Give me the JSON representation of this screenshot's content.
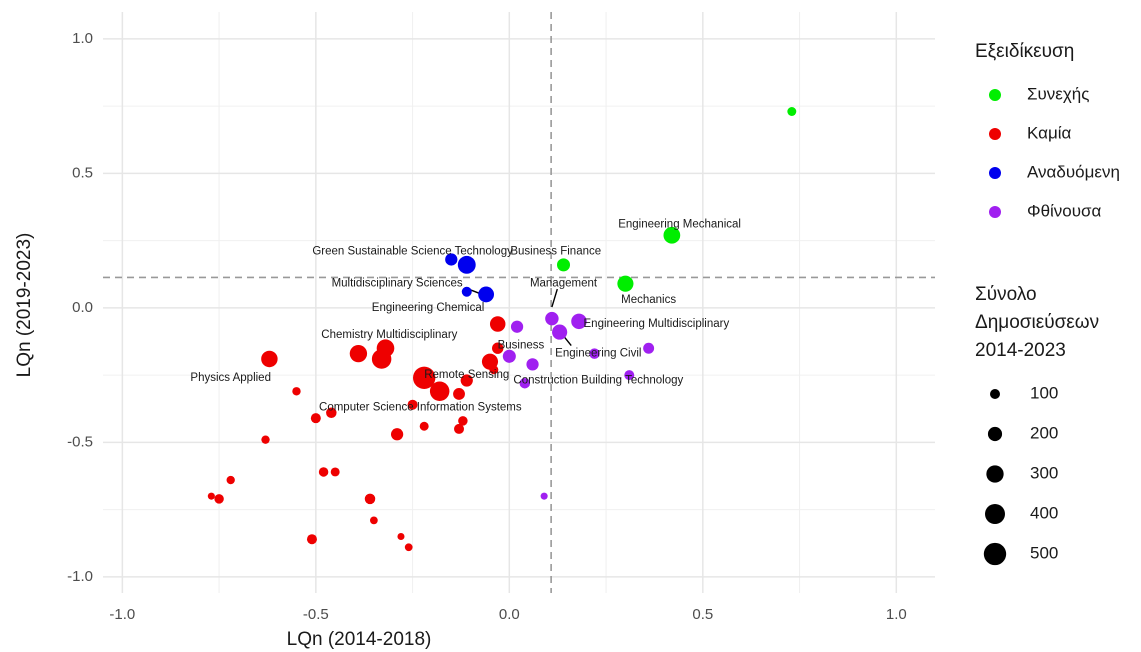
{
  "chart_data": {
    "type": "scatter",
    "title": "",
    "xlabel": "LQn (2014-2018)",
    "ylabel": "LQn (2019-2023)",
    "xlim": [
      -1.05,
      1.1
    ],
    "ylim": [
      -1.06,
      1.1
    ],
    "xticks": [
      -1.0,
      -0.5,
      0.0,
      0.5,
      1.0
    ],
    "xtick_labels": [
      "-1.0",
      "-0.5",
      "0.0",
      "0.5",
      "1.0"
    ],
    "yticks": [
      -1.0,
      -0.5,
      0.0,
      0.5,
      1.0
    ],
    "ytick_labels": [
      "-1.0",
      "-0.5",
      "0.0",
      "0.5",
      "1.0"
    ],
    "grid": true,
    "reference_lines": {
      "x": 0.108,
      "y": 0.113
    },
    "color_legend": {
      "title": "Εξειδίκευση",
      "entries": [
        {
          "name": "Συνεχής",
          "color": "#00ee00"
        },
        {
          "name": "Καμία",
          "color": "#ee0000"
        },
        {
          "name": "Αναδυόμενη",
          "color": "#0000ee"
        },
        {
          "name": "Φθίνουσα",
          "color": "#a020f0"
        }
      ]
    },
    "size_legend": {
      "title_lines": [
        "Σύνολο",
        "Δημοσιεύσεων",
        "2014-2023"
      ],
      "entries": [
        {
          "label": "100",
          "size": 100
        },
        {
          "label": "200",
          "size": 200
        },
        {
          "label": "300",
          "size": 300
        },
        {
          "label": "400",
          "size": 400
        },
        {
          "label": "500",
          "size": 500
        }
      ]
    },
    "series": [
      {
        "name": "Συνεχής",
        "points": [
          {
            "x": 0.73,
            "y": 0.73,
            "size": 80
          },
          {
            "x": 0.42,
            "y": 0.27,
            "size": 280
          },
          {
            "x": 0.3,
            "y": 0.09,
            "size": 260
          },
          {
            "x": 0.14,
            "y": 0.16,
            "size": 170
          }
        ]
      },
      {
        "name": "Καμία",
        "points": [
          {
            "x": -0.62,
            "y": -0.19,
            "size": 270
          },
          {
            "x": -0.55,
            "y": -0.31,
            "size": 70
          },
          {
            "x": -0.5,
            "y": -0.41,
            "size": 100
          },
          {
            "x": -0.46,
            "y": -0.39,
            "size": 110
          },
          {
            "x": -0.63,
            "y": -0.49,
            "size": 70
          },
          {
            "x": -0.72,
            "y": -0.64,
            "size": 70
          },
          {
            "x": -0.77,
            "y": -0.7,
            "size": 50
          },
          {
            "x": -0.75,
            "y": -0.71,
            "size": 90
          },
          {
            "x": -0.48,
            "y": -0.61,
            "size": 90
          },
          {
            "x": -0.45,
            "y": -0.61,
            "size": 80
          },
          {
            "x": -0.36,
            "y": -0.71,
            "size": 110
          },
          {
            "x": -0.35,
            "y": -0.79,
            "size": 60
          },
          {
            "x": -0.51,
            "y": -0.86,
            "size": 100
          },
          {
            "x": -0.28,
            "y": -0.85,
            "size": 50
          },
          {
            "x": -0.26,
            "y": -0.89,
            "size": 60
          },
          {
            "x": -0.39,
            "y": -0.17,
            "size": 300
          },
          {
            "x": -0.32,
            "y": -0.15,
            "size": 310
          },
          {
            "x": -0.33,
            "y": -0.19,
            "size": 380
          },
          {
            "x": -0.22,
            "y": -0.26,
            "size": 500
          },
          {
            "x": -0.18,
            "y": -0.31,
            "size": 380
          },
          {
            "x": -0.13,
            "y": -0.32,
            "size": 140
          },
          {
            "x": -0.11,
            "y": -0.27,
            "size": 150
          },
          {
            "x": -0.04,
            "y": -0.23,
            "size": 80
          },
          {
            "x": -0.05,
            "y": -0.2,
            "size": 260
          },
          {
            "x": -0.03,
            "y": -0.15,
            "size": 130
          },
          {
            "x": -0.03,
            "y": -0.06,
            "size": 240
          },
          {
            "x": -0.25,
            "y": -0.36,
            "size": 100
          },
          {
            "x": -0.29,
            "y": -0.47,
            "size": 150
          },
          {
            "x": -0.22,
            "y": -0.44,
            "size": 80
          },
          {
            "x": -0.13,
            "y": -0.45,
            "size": 100
          },
          {
            "x": -0.12,
            "y": -0.42,
            "size": 90
          }
        ]
      },
      {
        "name": "Αναδυόμενη",
        "points": [
          {
            "x": -0.15,
            "y": 0.18,
            "size": 150
          },
          {
            "x": -0.11,
            "y": 0.16,
            "size": 320
          },
          {
            "x": -0.06,
            "y": 0.05,
            "size": 250
          },
          {
            "x": -0.11,
            "y": 0.06,
            "size": 100
          }
        ]
      },
      {
        "name": "Φθίνουσα",
        "points": [
          {
            "x": 0.09,
            "y": -0.7,
            "size": 50
          },
          {
            "x": 0.02,
            "y": -0.07,
            "size": 150
          },
          {
            "x": 0.0,
            "y": -0.18,
            "size": 170
          },
          {
            "x": 0.06,
            "y": -0.21,
            "size": 150
          },
          {
            "x": 0.04,
            "y": -0.28,
            "size": 110
          },
          {
            "x": 0.11,
            "y": -0.04,
            "size": 180
          },
          {
            "x": 0.13,
            "y": -0.09,
            "size": 230
          },
          {
            "x": 0.18,
            "y": -0.05,
            "size": 240
          },
          {
            "x": 0.22,
            "y": -0.17,
            "size": 110
          },
          {
            "x": 0.31,
            "y": -0.25,
            "size": 100
          },
          {
            "x": 0.36,
            "y": -0.15,
            "size": 120
          }
        ]
      }
    ],
    "annotations": [
      {
        "text": "Engineering Mechanical",
        "x": 0.44,
        "y": 0.31
      },
      {
        "text": "Business Finance",
        "x": 0.12,
        "y": 0.21
      },
      {
        "text": "Green Sustainable Science Technology",
        "x": -0.25,
        "y": 0.21
      },
      {
        "text": "Management",
        "x": 0.14,
        "y": 0.09
      },
      {
        "text": "Multidisciplinary Sciences",
        "x": -0.29,
        "y": 0.09
      },
      {
        "text": "Mechanics",
        "x": 0.36,
        "y": 0.03
      },
      {
        "text": "Engineering Chemical",
        "x": -0.21,
        "y": 0.0
      },
      {
        "text": "Engineering Multidisciplinary",
        "x": 0.38,
        "y": -0.06
      },
      {
        "text": "Chemistry Multidisciplinary",
        "x": -0.31,
        "y": -0.1
      },
      {
        "text": "Business",
        "x": 0.03,
        "y": -0.14
      },
      {
        "text": "Engineering Civil",
        "x": 0.23,
        "y": -0.17
      },
      {
        "text": "Physics Applied",
        "x": -0.72,
        "y": -0.26
      },
      {
        "text": "Remote Sensing",
        "x": -0.11,
        "y": -0.25
      },
      {
        "text": "Construction Building Technology",
        "x": 0.23,
        "y": -0.27
      },
      {
        "text": "Computer Science Information Systems",
        "x": -0.23,
        "y": -0.37
      }
    ],
    "leader_lines": [
      {
        "from": [
          0.124,
          0.07
        ],
        "to": [
          0.11,
          0.003
        ]
      },
      {
        "from": [
          0.16,
          -0.14
        ],
        "to": [
          0.132,
          -0.09
        ]
      },
      {
        "from": [
          -0.115,
          0.075
        ],
        "to": [
          -0.07,
          0.05
        ]
      }
    ]
  }
}
